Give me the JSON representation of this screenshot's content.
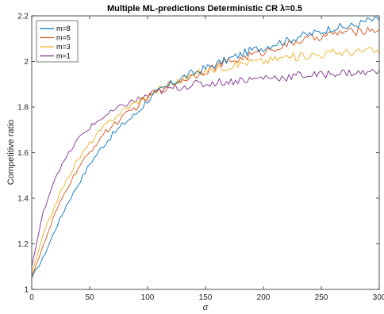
{
  "chart_data": {
    "type": "line",
    "title": "Multiple ML-predictions Deterministic CR  λ=0.5",
    "xlabel": "σ",
    "ylabel": "Competitive ratio",
    "xlim": [
      0,
      300
    ],
    "ylim": [
      1,
      2.2
    ],
    "xticks": [
      0,
      50,
      100,
      150,
      200,
      250,
      300
    ],
    "yticks": [
      1,
      1.2,
      1.4,
      1.6,
      1.8,
      2,
      2.2
    ],
    "grid": false,
    "legend_position": "top-left",
    "x": [
      0,
      10,
      20,
      30,
      40,
      50,
      60,
      70,
      80,
      90,
      100,
      110,
      120,
      130,
      140,
      150,
      160,
      170,
      180,
      190,
      200,
      210,
      220,
      230,
      240,
      250,
      260,
      270,
      280,
      290,
      300
    ],
    "series": [
      {
        "name": "m=8",
        "color": "#0072BD",
        "values": [
          1.05,
          1.14,
          1.26,
          1.37,
          1.46,
          1.55,
          1.62,
          1.68,
          1.73,
          1.77,
          1.83,
          1.87,
          1.9,
          1.93,
          1.95,
          1.97,
          1.99,
          2.01,
          2.03,
          2.05,
          2.06,
          2.08,
          2.09,
          2.11,
          2.12,
          2.13,
          2.15,
          2.15,
          2.16,
          2.18,
          2.18
        ]
      },
      {
        "name": "m=5",
        "color": "#D95319",
        "values": [
          1.06,
          1.19,
          1.33,
          1.44,
          1.53,
          1.6,
          1.67,
          1.72,
          1.76,
          1.8,
          1.84,
          1.87,
          1.9,
          1.92,
          1.94,
          1.96,
          1.98,
          2.0,
          2.01,
          2.03,
          2.04,
          2.06,
          2.07,
          2.09,
          2.1,
          2.11,
          2.12,
          2.13,
          2.13,
          2.14,
          2.14
        ]
      },
      {
        "name": "m=3",
        "color": "#EDB120",
        "values": [
          1.07,
          1.24,
          1.37,
          1.48,
          1.57,
          1.64,
          1.7,
          1.75,
          1.79,
          1.82,
          1.85,
          1.88,
          1.9,
          1.92,
          1.94,
          1.96,
          1.97,
          1.98,
          1.99,
          2.0,
          2.0,
          2.01,
          2.02,
          2.02,
          2.03,
          2.03,
          2.04,
          2.04,
          2.04,
          2.05,
          2.04
        ]
      },
      {
        "name": "m=1",
        "color": "#7E2F8E",
        "values": [
          1.1,
          1.34,
          1.49,
          1.58,
          1.66,
          1.71,
          1.75,
          1.78,
          1.81,
          1.83,
          1.85,
          1.87,
          1.88,
          1.89,
          1.9,
          1.9,
          1.91,
          1.91,
          1.92,
          1.92,
          1.93,
          1.93,
          1.93,
          1.94,
          1.94,
          1.94,
          1.95,
          1.95,
          1.95,
          1.95,
          1.96
        ]
      }
    ]
  }
}
